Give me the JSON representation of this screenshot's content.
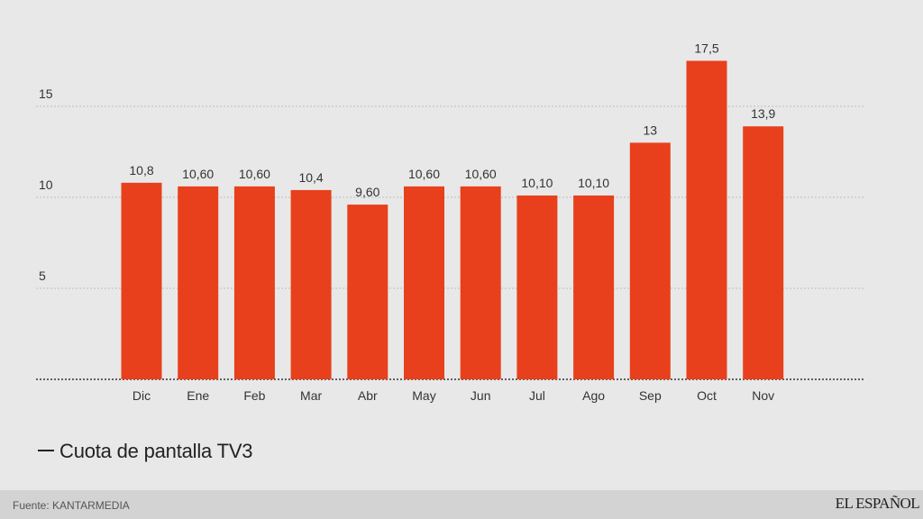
{
  "chart_data": {
    "type": "bar",
    "categories": [
      "Dic",
      "Ene",
      "Feb",
      "Mar",
      "Abr",
      "May",
      "Jun",
      "Jul",
      "Ago",
      "Sep",
      "Oct",
      "Nov"
    ],
    "values": [
      10.8,
      10.6,
      10.6,
      10.4,
      9.6,
      10.6,
      10.6,
      10.1,
      10.1,
      13,
      17.5,
      13.9
    ],
    "value_labels": [
      "10,8",
      "10,60",
      "10,60",
      "10,4",
      "9,60",
      "10,60",
      "10,60",
      "10,10",
      "10,10",
      "13",
      "17,5",
      "13,9"
    ],
    "yticks": [
      5,
      10,
      15
    ],
    "ylim": [
      0,
      18
    ],
    "grid": true,
    "bar_color": "#e8401c",
    "series": [
      {
        "name": "Cuota de pantalla TV3"
      }
    ]
  },
  "legend": {
    "label": "Cuota de pantalla TV3"
  },
  "footer": {
    "source": "Fuente: KANTARMEDIA",
    "brand": "EL ESPAÑOL"
  }
}
